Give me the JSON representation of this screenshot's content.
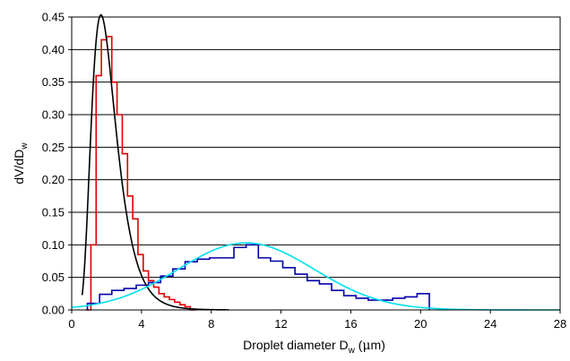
{
  "chart_data": {
    "type": "line",
    "title": "",
    "xlabel": {
      "main": "Droplet diameter D",
      "sub": "w",
      "unit_open": " (",
      "mu": "μ",
      "unit_rest": "m)"
    },
    "ylabel": {
      "main": "dV/dD",
      "sub": "w"
    },
    "xlim": [
      0,
      28
    ],
    "ylim": [
      0,
      0.45
    ],
    "x_ticks": [
      0,
      4,
      8,
      12,
      16,
      20,
      24,
      28
    ],
    "y_ticks": [
      0.0,
      0.05,
      0.1,
      0.15,
      0.2,
      0.25,
      0.3,
      0.35,
      0.4,
      0.45
    ],
    "y_tick_labels": [
      "0.00",
      "0.05",
      "0.10",
      "0.15",
      "0.20",
      "0.25",
      "0.30",
      "0.35",
      "0.40",
      "0.45"
    ],
    "grid": "horizontal",
    "legend": "none",
    "series": [
      {
        "style": "step",
        "color": "#e00000",
        "edges": [
          0.8,
          1.1,
          1.4,
          1.7,
          2.0,
          2.3,
          2.6,
          2.9,
          3.2,
          3.5,
          3.8,
          4.1,
          4.4,
          4.7,
          5.0,
          5.3,
          5.6,
          5.9,
          6.2,
          6.5,
          6.8,
          7.1
        ],
        "values": [
          0.0,
          0.1,
          0.36,
          0.415,
          0.42,
          0.35,
          0.3,
          0.24,
          0.175,
          0.14,
          0.085,
          0.06,
          0.045,
          0.035,
          0.025,
          0.02,
          0.016,
          0.012,
          0.008,
          0.005,
          0.0
        ]
      },
      {
        "style": "step",
        "color": "#0000aa",
        "edges": [
          0.9,
          1.6,
          2.3,
          3.0,
          3.7,
          4.4,
          5.1,
          5.8,
          6.5,
          7.2,
          7.9,
          8.6,
          9.3,
          10.0,
          10.7,
          11.4,
          12.1,
          12.8,
          13.5,
          14.2,
          14.9,
          15.6,
          16.3,
          17.0,
          17.7,
          18.4,
          19.1,
          19.8,
          20.5
        ],
        "values": [
          0.01,
          0.024,
          0.03,
          0.033,
          0.038,
          0.042,
          0.052,
          0.063,
          0.074,
          0.078,
          0.08,
          0.08,
          0.096,
          0.1,
          0.08,
          0.075,
          0.065,
          0.055,
          0.045,
          0.04,
          0.03,
          0.022,
          0.018,
          0.015,
          0.015,
          0.018,
          0.02,
          0.025
        ]
      },
      {
        "style": "curve",
        "color": "#000000",
        "model": "lognormal",
        "mode": 2.0,
        "peak": 0.415,
        "sigma": 0.42,
        "x_range": [
          0.6,
          9.0
        ]
      },
      {
        "style": "curve",
        "color": "#00e0ee",
        "model": "gaussian",
        "mean": 10.0,
        "peak": 0.103,
        "sd": 3.9,
        "x_range": [
          0.0,
          28.0
        ]
      }
    ]
  }
}
